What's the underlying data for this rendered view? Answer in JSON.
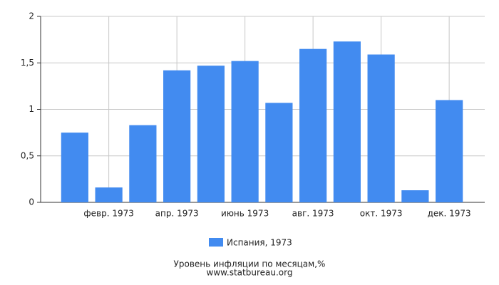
{
  "chart_data": {
    "type": "bar",
    "title": "Уровень инфляции по месяцам,%",
    "source": "www.statbureau.org",
    "categories": [
      null,
      "февр. 1973",
      null,
      "апр. 1973",
      null,
      "июнь 1973",
      null,
      "авг. 1973",
      null,
      "окт. 1973",
      null,
      "дек. 1973"
    ],
    "series": [
      {
        "name": "Испания, 1973",
        "color": "#428bf0",
        "values": [
          0.75,
          0.16,
          0.83,
          1.42,
          1.47,
          1.52,
          1.07,
          1.65,
          1.73,
          1.59,
          0.13,
          1.1
        ]
      }
    ],
    "ylim": [
      0,
      2
    ],
    "yticks": [
      0,
      {
        "value": 0.5,
        "label": "0,5"
      },
      1,
      {
        "value": 1.5,
        "label": "1,5"
      },
      2
    ],
    "grid": true
  }
}
